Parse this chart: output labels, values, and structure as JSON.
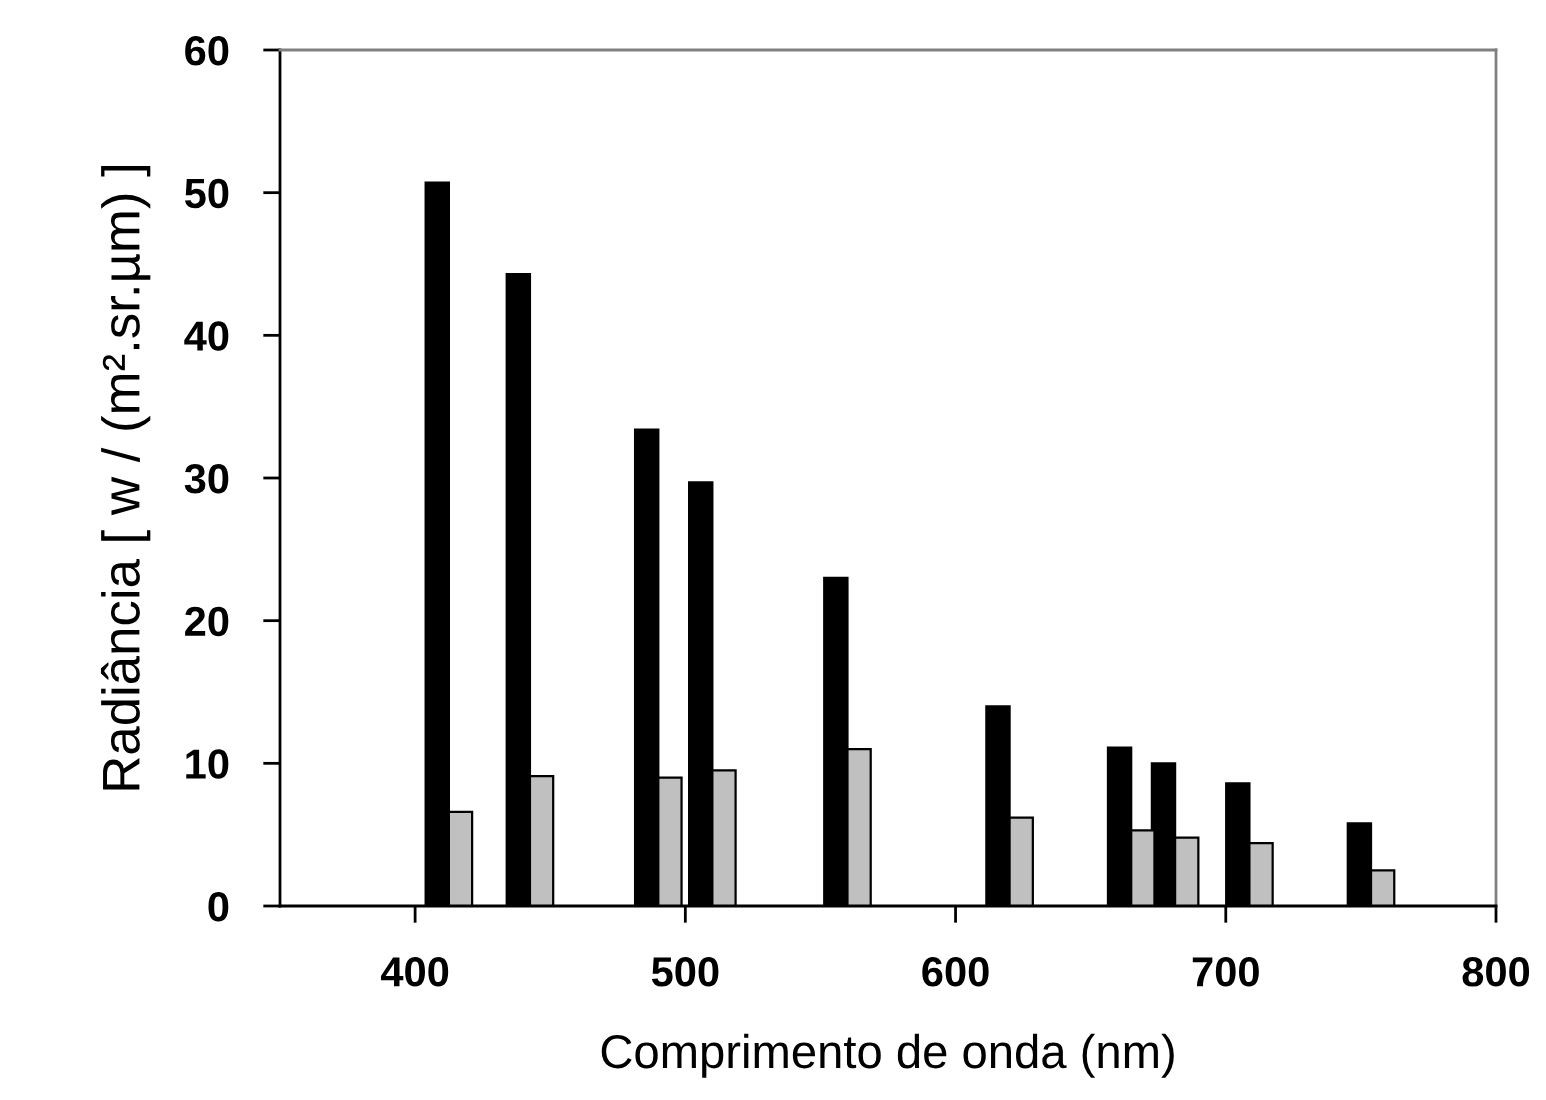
{
  "chart_data": {
    "type": "bar",
    "xlabel": "Comprimento de onda (nm)",
    "ylabel": "Radiância [ w / (m².sr.µm) ]",
    "x": [
      412.5,
      442.5,
      490,
      510,
      560,
      620,
      665,
      681.25,
      708.75,
      753.75
    ],
    "series": [
      {
        "color": "#000000",
        "values": [
          50.7,
          44.3,
          33.4,
          29.7,
          23.0,
          14.0,
          11.1,
          10.0,
          8.6,
          5.8
        ]
      },
      {
        "color": "#c0c0c0",
        "values": [
          6.6,
          9.1,
          9.0,
          9.5,
          11.0,
          6.2,
          5.3,
          4.8,
          4.4,
          2.5
        ]
      }
    ],
    "xlim": [
      350,
      800
    ],
    "xticks": [
      400,
      500,
      600,
      700,
      800
    ],
    "ylim": [
      0,
      60
    ],
    "yticks": [
      0,
      10,
      20,
      30,
      40,
      50,
      60
    ],
    "grid": false,
    "legend": false
  }
}
